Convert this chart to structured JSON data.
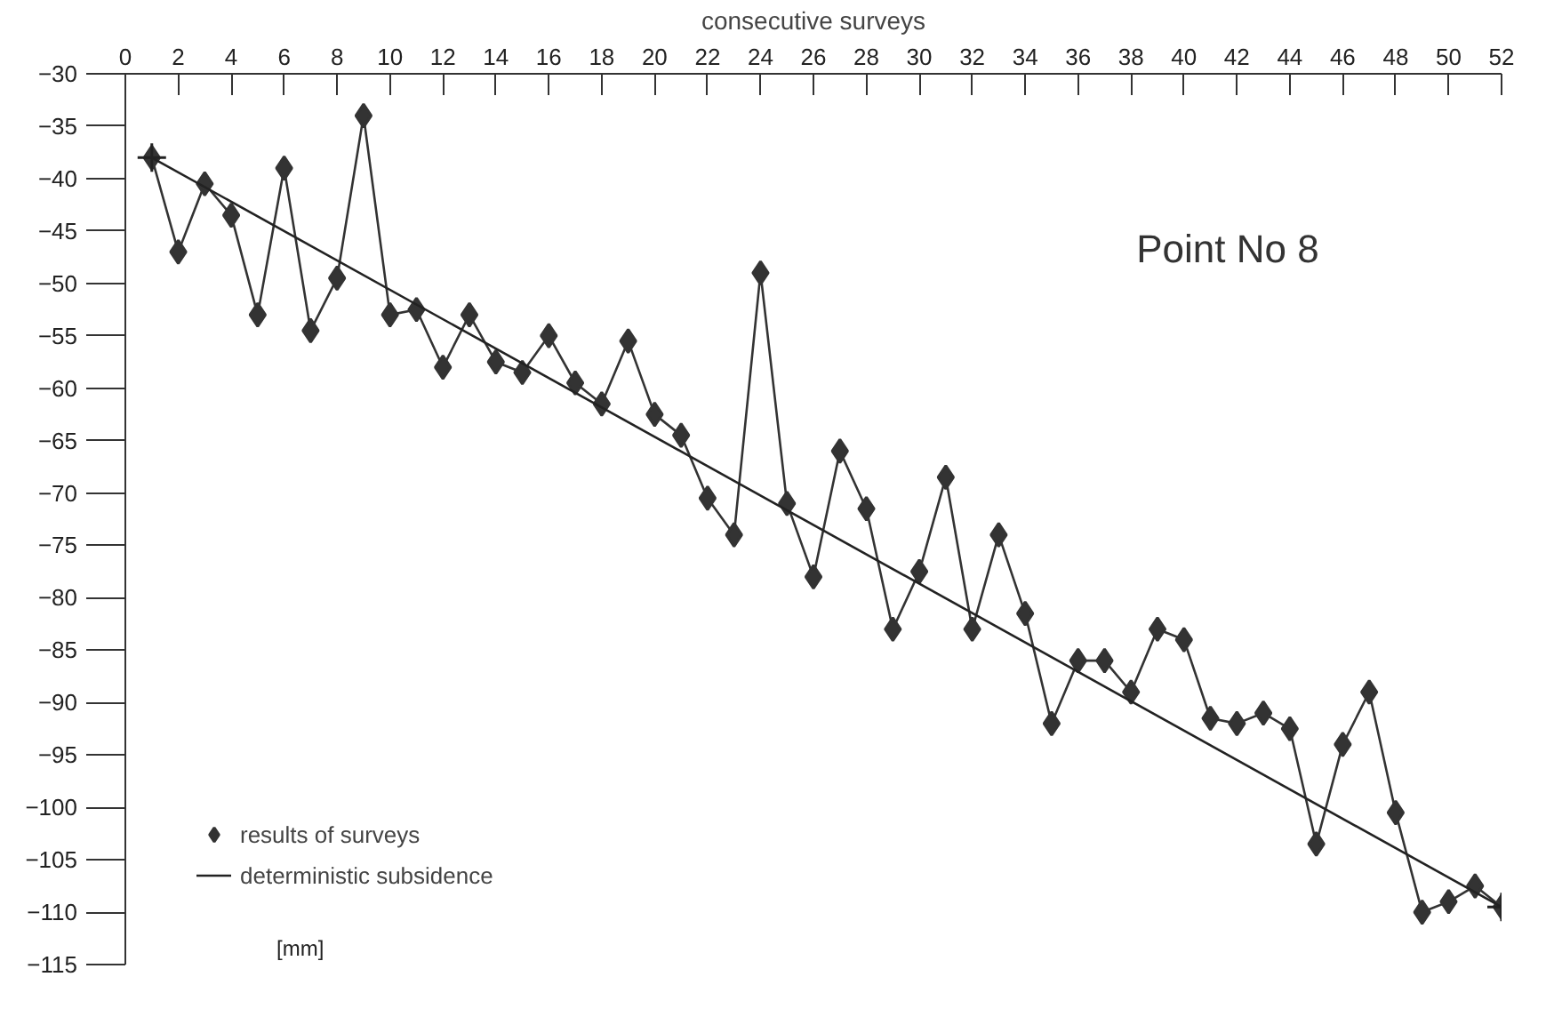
{
  "chart_data": {
    "type": "line",
    "title": "Point No 8",
    "xlabel": "consecutive surveys",
    "ylabel": "[mm]",
    "xlim": [
      0,
      52
    ],
    "xticks": [
      0,
      2,
      4,
      6,
      8,
      10,
      12,
      14,
      16,
      18,
      20,
      22,
      24,
      26,
      28,
      30,
      32,
      34,
      36,
      38,
      40,
      42,
      44,
      46,
      48,
      50,
      52
    ],
    "ylim": [
      -115,
      -30
    ],
    "yticks": [
      -115,
      -110,
      -105,
      -100,
      -95,
      -90,
      -85,
      -80,
      -75,
      -70,
      -65,
      -60,
      -55,
      -50,
      -45,
      -40,
      -35,
      -30
    ],
    "grid": false,
    "legend": "bottom left",
    "series": [
      {
        "name": "results of surveys",
        "color": "#333333",
        "marker": "diamond",
        "x": [
          1,
          2,
          3,
          4,
          5,
          6,
          7,
          8,
          9,
          10,
          11,
          12,
          13,
          14,
          15,
          16,
          17,
          18,
          19,
          20,
          21,
          22,
          23,
          24,
          25,
          26,
          27,
          28,
          29,
          30,
          31,
          32,
          33,
          34,
          35,
          36,
          37,
          38,
          39,
          40,
          41,
          42,
          43,
          44,
          45,
          46,
          47,
          48,
          49,
          50,
          51,
          52
        ],
        "values": [
          -38,
          -47,
          -40.5,
          -43.5,
          -53,
          -39,
          -54.5,
          -49.5,
          -34,
          -53,
          -52.5,
          -58,
          -53,
          -57.5,
          -58.5,
          -55,
          -59.5,
          -61.5,
          -55.5,
          -62.5,
          -64.5,
          -70.5,
          -74,
          -49,
          -71,
          -78,
          -66,
          -71.5,
          -83,
          -77.5,
          -68.5,
          -83,
          -74,
          -81.5,
          -92,
          -86,
          -86,
          -89,
          -83,
          -84,
          -91.5,
          -92,
          -91,
          -92.5,
          -103.5,
          -94,
          -89,
          -100.5,
          -110,
          -109,
          -107.5,
          -109.5
        ]
      },
      {
        "name": "deterministic subsidence",
        "color": "#222222",
        "marker": "cross",
        "x": [
          1,
          52
        ],
        "values": [
          -38,
          -109.5
        ]
      }
    ]
  }
}
